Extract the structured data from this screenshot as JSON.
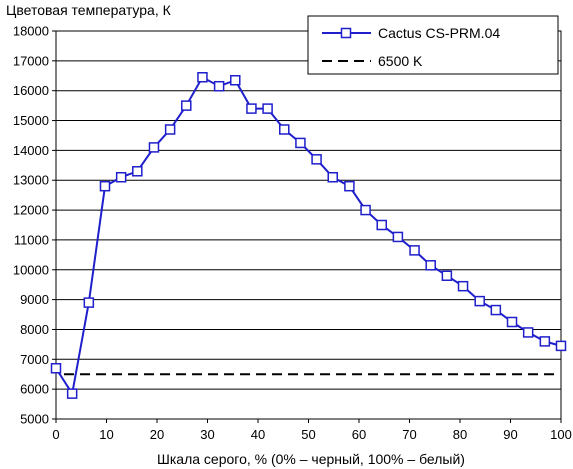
{
  "chart_data": {
    "type": "line",
    "title": "",
    "ylabel": "Цветовая температура, К",
    "xlabel": "Шкала серого, % (0% – черный, 100% – белый)",
    "xlim": [
      0,
      100
    ],
    "ylim": [
      5000,
      18000
    ],
    "x_ticks": [
      0,
      10,
      20,
      30,
      40,
      50,
      60,
      70,
      80,
      90,
      100
    ],
    "y_ticks": [
      5000,
      6000,
      7000,
      8000,
      9000,
      10000,
      11000,
      12000,
      13000,
      14000,
      15000,
      16000,
      17000,
      18000
    ],
    "grid": "horizontal",
    "legend_position": "top-right",
    "series": [
      {
        "name": "Cactus CS-PRM.04",
        "color": "#1f1fcc",
        "marker": "square",
        "x": [
          0,
          3.2,
          6.5,
          9.7,
          12.9,
          16.1,
          19.4,
          22.6,
          25.8,
          29,
          32.3,
          35.5,
          38.7,
          41.9,
          45.2,
          48.4,
          51.6,
          54.8,
          58.1,
          61.3,
          64.5,
          67.7,
          71,
          74.2,
          77.4,
          80.6,
          83.9,
          87.1,
          90.3,
          93.5,
          96.8,
          100
        ],
        "y": [
          6700,
          5850,
          8900,
          12800,
          13100,
          13300,
          14100,
          14700,
          15500,
          16450,
          16150,
          16350,
          15400,
          15400,
          14700,
          14250,
          13700,
          13100,
          12800,
          12000,
          11500,
          11100,
          10650,
          10150,
          9800,
          9450,
          8950,
          8650,
          8250,
          7900,
          7600,
          7450
        ]
      },
      {
        "name": "6500 K",
        "color": "#000000",
        "style": "dashed",
        "x": [
          0,
          100
        ],
        "y": [
          6500,
          6500
        ]
      }
    ]
  }
}
